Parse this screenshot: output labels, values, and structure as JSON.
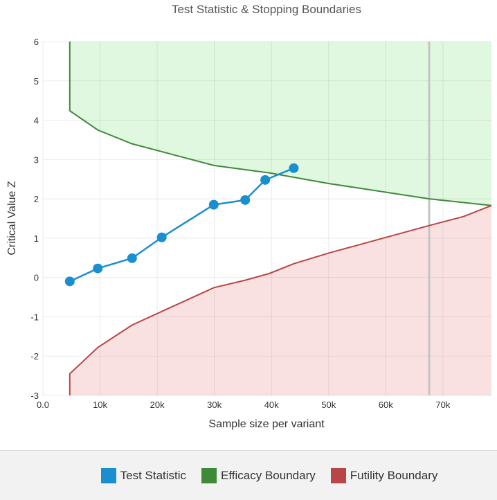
{
  "chart_data": {
    "type": "line",
    "title": "Test Statistic & Stopping Boundaries",
    "xlabel": "Sample size per variant",
    "ylabel": "Critical Value Z",
    "xlim": [
      0,
      78500
    ],
    "ylim": [
      -3,
      6
    ],
    "xticks": [
      {
        "v": 0,
        "label": "0.0"
      },
      {
        "v": 10000,
        "label": "10k"
      },
      {
        "v": 20000,
        "label": "20k"
      },
      {
        "v": 30000,
        "label": "30k"
      },
      {
        "v": 40000,
        "label": "40k"
      },
      {
        "v": 50000,
        "label": "50k"
      },
      {
        "v": 60000,
        "label": "60k"
      },
      {
        "v": 70000,
        "label": "70k"
      }
    ],
    "yticks": [
      {
        "v": 6,
        "label": "6"
      },
      {
        "v": 5,
        "label": "5"
      },
      {
        "v": 4,
        "label": "4"
      },
      {
        "v": 3,
        "label": "3"
      },
      {
        "v": 2,
        "label": "2"
      },
      {
        "v": 1,
        "label": "1"
      },
      {
        "v": 0,
        "label": "0"
      },
      {
        "v": -1,
        "label": "-1"
      },
      {
        "v": -2,
        "label": "-2"
      },
      {
        "v": -3,
        "label": "-3"
      }
    ],
    "grid": true,
    "reference_line_x": 67600,
    "series": [
      {
        "name": "Test Statistic",
        "color": "#1a8fd0",
        "points": [
          [
            4700,
            -0.1
          ],
          [
            9600,
            0.23
          ],
          [
            15600,
            0.49
          ],
          [
            20800,
            1.02
          ],
          [
            29900,
            1.85
          ],
          [
            35400,
            1.97
          ],
          [
            38900,
            2.48
          ],
          [
            43900,
            2.78
          ]
        ]
      },
      {
        "name": "Efficacy Boundary",
        "color": "#3e8a3a",
        "fill": "#e0f7e0",
        "points": [
          [
            4700,
            6
          ],
          [
            4700,
            4.24
          ],
          [
            9600,
            3.75
          ],
          [
            15600,
            3.4
          ],
          [
            29900,
            2.85
          ],
          [
            39600,
            2.66
          ],
          [
            50000,
            2.39
          ],
          [
            67600,
            2.0
          ],
          [
            78500,
            1.83
          ]
        ]
      },
      {
        "name": "Futility Boundary",
        "color": "#b84646",
        "fill": "#f9e1e1",
        "points": [
          [
            4700,
            -3
          ],
          [
            4700,
            -2.45
          ],
          [
            9600,
            -1.78
          ],
          [
            15600,
            -1.21
          ],
          [
            29900,
            -0.26
          ],
          [
            35400,
            -0.07
          ],
          [
            39600,
            0.1
          ],
          [
            43900,
            0.35
          ],
          [
            50000,
            0.62
          ],
          [
            67600,
            1.32
          ],
          [
            73600,
            1.55
          ],
          [
            78500,
            1.83
          ]
        ]
      }
    ],
    "legend": "bottom"
  }
}
